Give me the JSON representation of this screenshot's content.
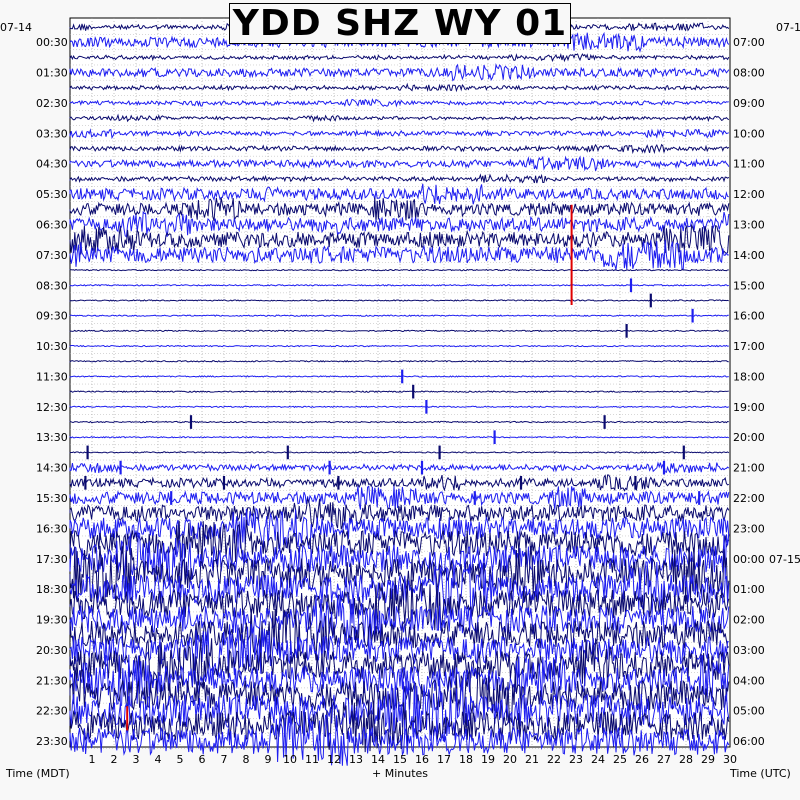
{
  "chart_data": {
    "type": "line",
    "title": "YDD SHZ WY 01",
    "left_date": "07-14",
    "right_date_top": "07-1",
    "right_date_mid": "07-15",
    "left_hours": [
      "00:30",
      "01:30",
      "02:30",
      "03:30",
      "04:30",
      "05:30",
      "06:30",
      "07:30",
      "08:30",
      "09:30",
      "10:30",
      "11:30",
      "12:30",
      "13:30",
      "14:30",
      "15:30",
      "16:30",
      "17:30",
      "18:30",
      "19:30",
      "20:30",
      "21:30",
      "22:30",
      "23:30"
    ],
    "right_hours": [
      "07:00",
      "08:00",
      "09:00",
      "10:00",
      "11:00",
      "12:00",
      "13:00",
      "14:00",
      "15:00",
      "16:00",
      "17:00",
      "18:00",
      "19:00",
      "20:00",
      "21:00",
      "22:00",
      "23:00",
      "00:00",
      "01:00",
      "02:00",
      "03:00",
      "04:00",
      "05:00",
      "06:00"
    ],
    "x_ticks": [
      "1",
      "2",
      "3",
      "4",
      "5",
      "6",
      "7",
      "8",
      "9",
      "10",
      "11",
      "12",
      "13",
      "14",
      "15",
      "16",
      "17",
      "18",
      "19",
      "20",
      "21",
      "22",
      "23",
      "24",
      "25",
      "26",
      "27",
      "28",
      "29",
      "30"
    ],
    "xlabel": "+ Minutes",
    "left_axis_label": "Time (MDT)",
    "right_axis_label": "Time (UTC)",
    "xlim": [
      0,
      30
    ],
    "traces_per_hour": 2,
    "colors": [
      "#0a0a6e",
      "#1e1ef0"
    ],
    "marker_color": "#e00000",
    "markers": [
      {
        "trace": 12,
        "minute": 22.8,
        "span_traces": 7
      },
      {
        "trace": 45,
        "minute": 2.6,
        "span_traces": 2
      }
    ],
    "activity_profile": [
      0.3,
      0.7,
      0.25,
      0.6,
      0.25,
      0.25,
      0.2,
      0.3,
      0.3,
      0.5,
      0.3,
      0.8,
      0.9,
      1.0,
      1.1,
      1.2,
      0.0,
      0.0,
      0.0,
      0.0,
      0.0,
      0.0,
      0.0,
      0.0,
      0.0,
      0.0,
      0.0,
      0.0,
      0.0,
      0.4,
      0.6,
      0.9,
      1.2,
      1.6,
      1.9,
      2.0,
      2.2,
      2.1,
      2.1,
      2.0,
      2.0,
      2.0,
      2.1,
      2.0,
      2.2,
      2.4,
      2.1,
      2.0
    ]
  }
}
